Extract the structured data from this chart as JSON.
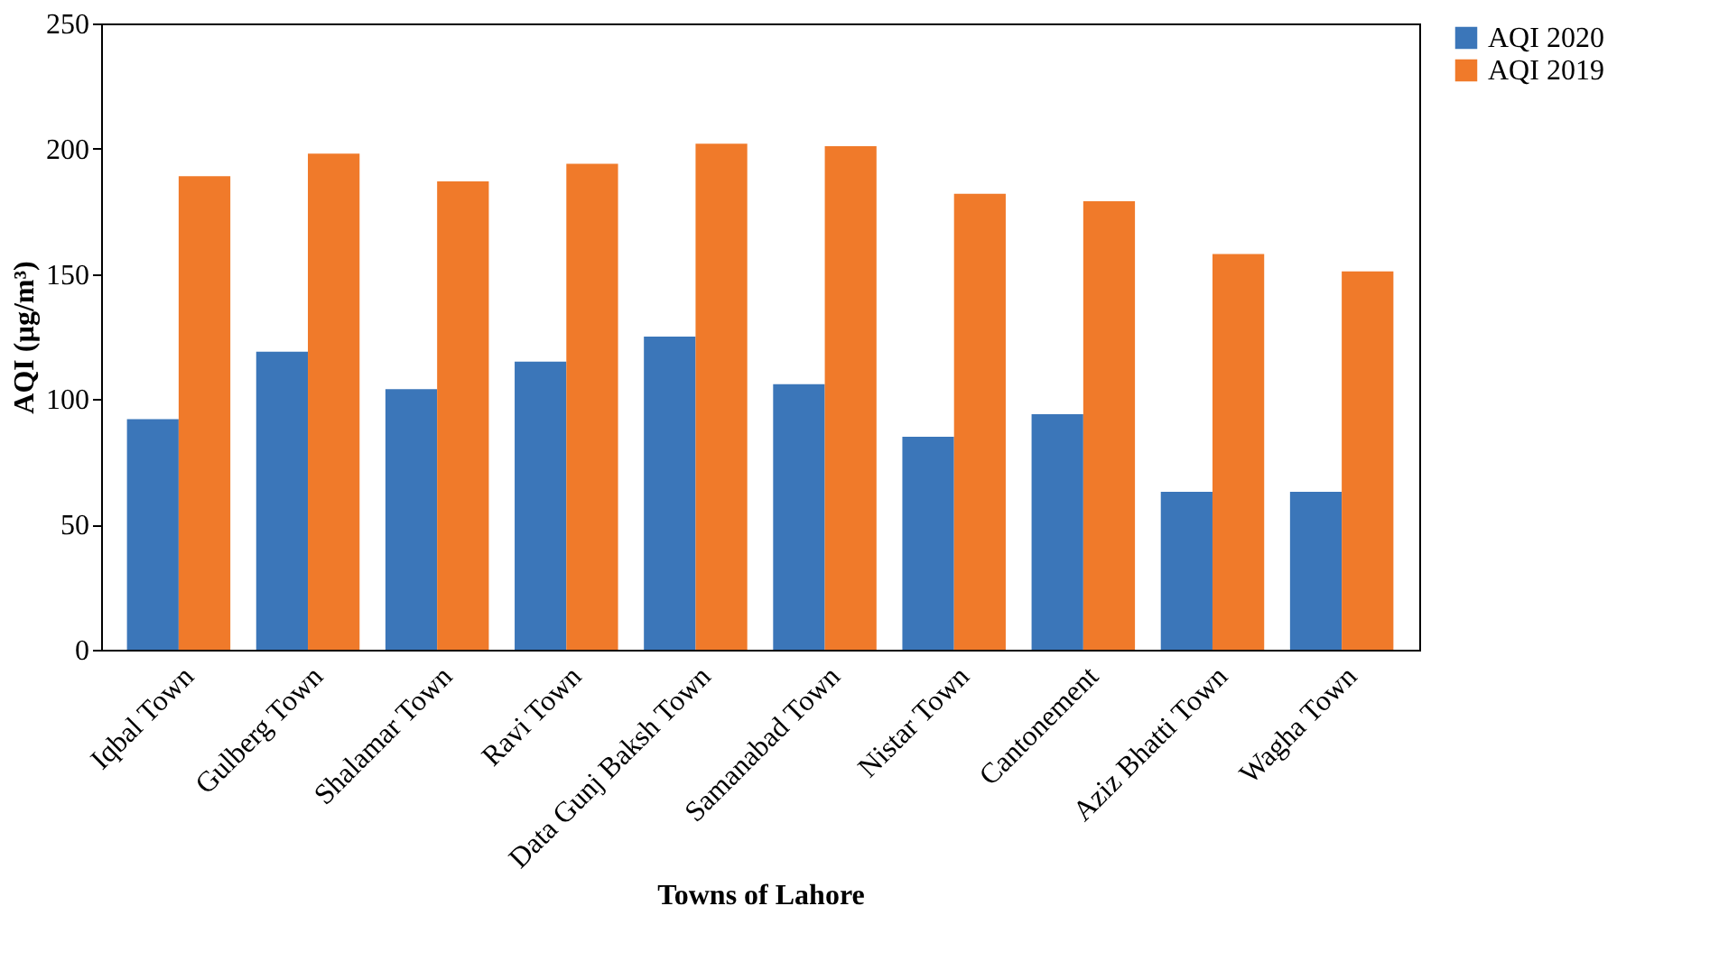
{
  "chart_data": {
    "type": "bar",
    "xlabel": "Towns of Lahore",
    "ylabel": "AQI (µg/m³)",
    "categories": [
      "Iqbal Town",
      "Gulberg Town",
      "Shalamar Town",
      "Ravi Town",
      "Data Gunj Baksh Town",
      "Samanabad Town",
      "Nistar Town",
      "Cantonement",
      "Aziz Bhatti Town",
      "Wagha Town"
    ],
    "series": [
      {
        "name": "AQI 2020",
        "color": "#3b76b9",
        "values": [
          92,
          119,
          104,
          115,
          125,
          106,
          85,
          94,
          63,
          63
        ]
      },
      {
        "name": "AQI 2019",
        "color": "#f07a2a",
        "values": [
          189,
          198,
          187,
          194,
          202,
          201,
          182,
          179,
          158,
          151
        ]
      }
    ],
    "ylim": [
      0,
      250
    ],
    "yticks": [
      0,
      50,
      100,
      150,
      200,
      250
    ],
    "grid": false,
    "legend": "right"
  }
}
